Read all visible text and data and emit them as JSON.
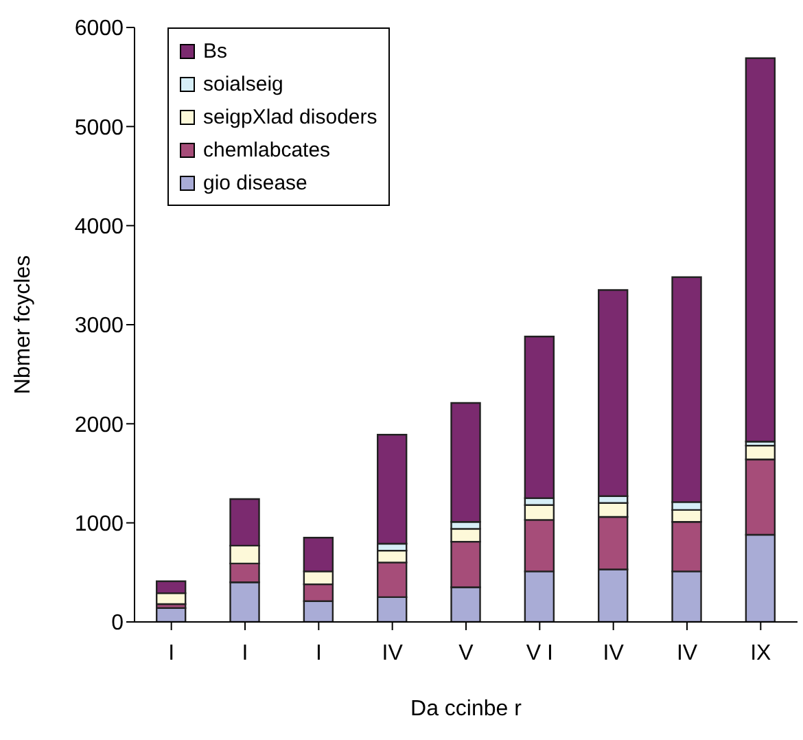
{
  "chart_data": {
    "type": "bar",
    "stacked": true,
    "xlabel": "Da ccinbe r",
    "ylabel": "Nbmer fcycles",
    "categories": [
      "I",
      "I",
      "I",
      "IV",
      "V",
      "V I",
      "IV",
      "IV",
      "IX"
    ],
    "series": [
      {
        "name": "gio disease",
        "color": "#a9acd6",
        "values": [
          140,
          400,
          210,
          250,
          350,
          510,
          530,
          510,
          880
        ]
      },
      {
        "name": "chemlabcates",
        "color": "#a64d79",
        "values": [
          40,
          190,
          170,
          350,
          460,
          520,
          530,
          500,
          760
        ]
      },
      {
        "name": "seigpXlad disoders",
        "color": "#fdf9d9",
        "values": [
          110,
          180,
          130,
          120,
          130,
          150,
          140,
          120,
          140
        ]
      },
      {
        "name": "soialseig",
        "color": "#d6eef7",
        "values": [
          0,
          0,
          0,
          70,
          70,
          70,
          70,
          80,
          40
        ]
      },
      {
        "name": "Bs",
        "color": "#7b2a6f",
        "values": [
          120,
          470,
          340,
          1100,
          1200,
          1630,
          2080,
          2270,
          3870
        ]
      }
    ],
    "ylim": [
      0,
      6000
    ],
    "yticks": [
      0,
      1000,
      2000,
      3000,
      4000,
      5000,
      6000
    ],
    "grid": false,
    "legend": "top left"
  }
}
